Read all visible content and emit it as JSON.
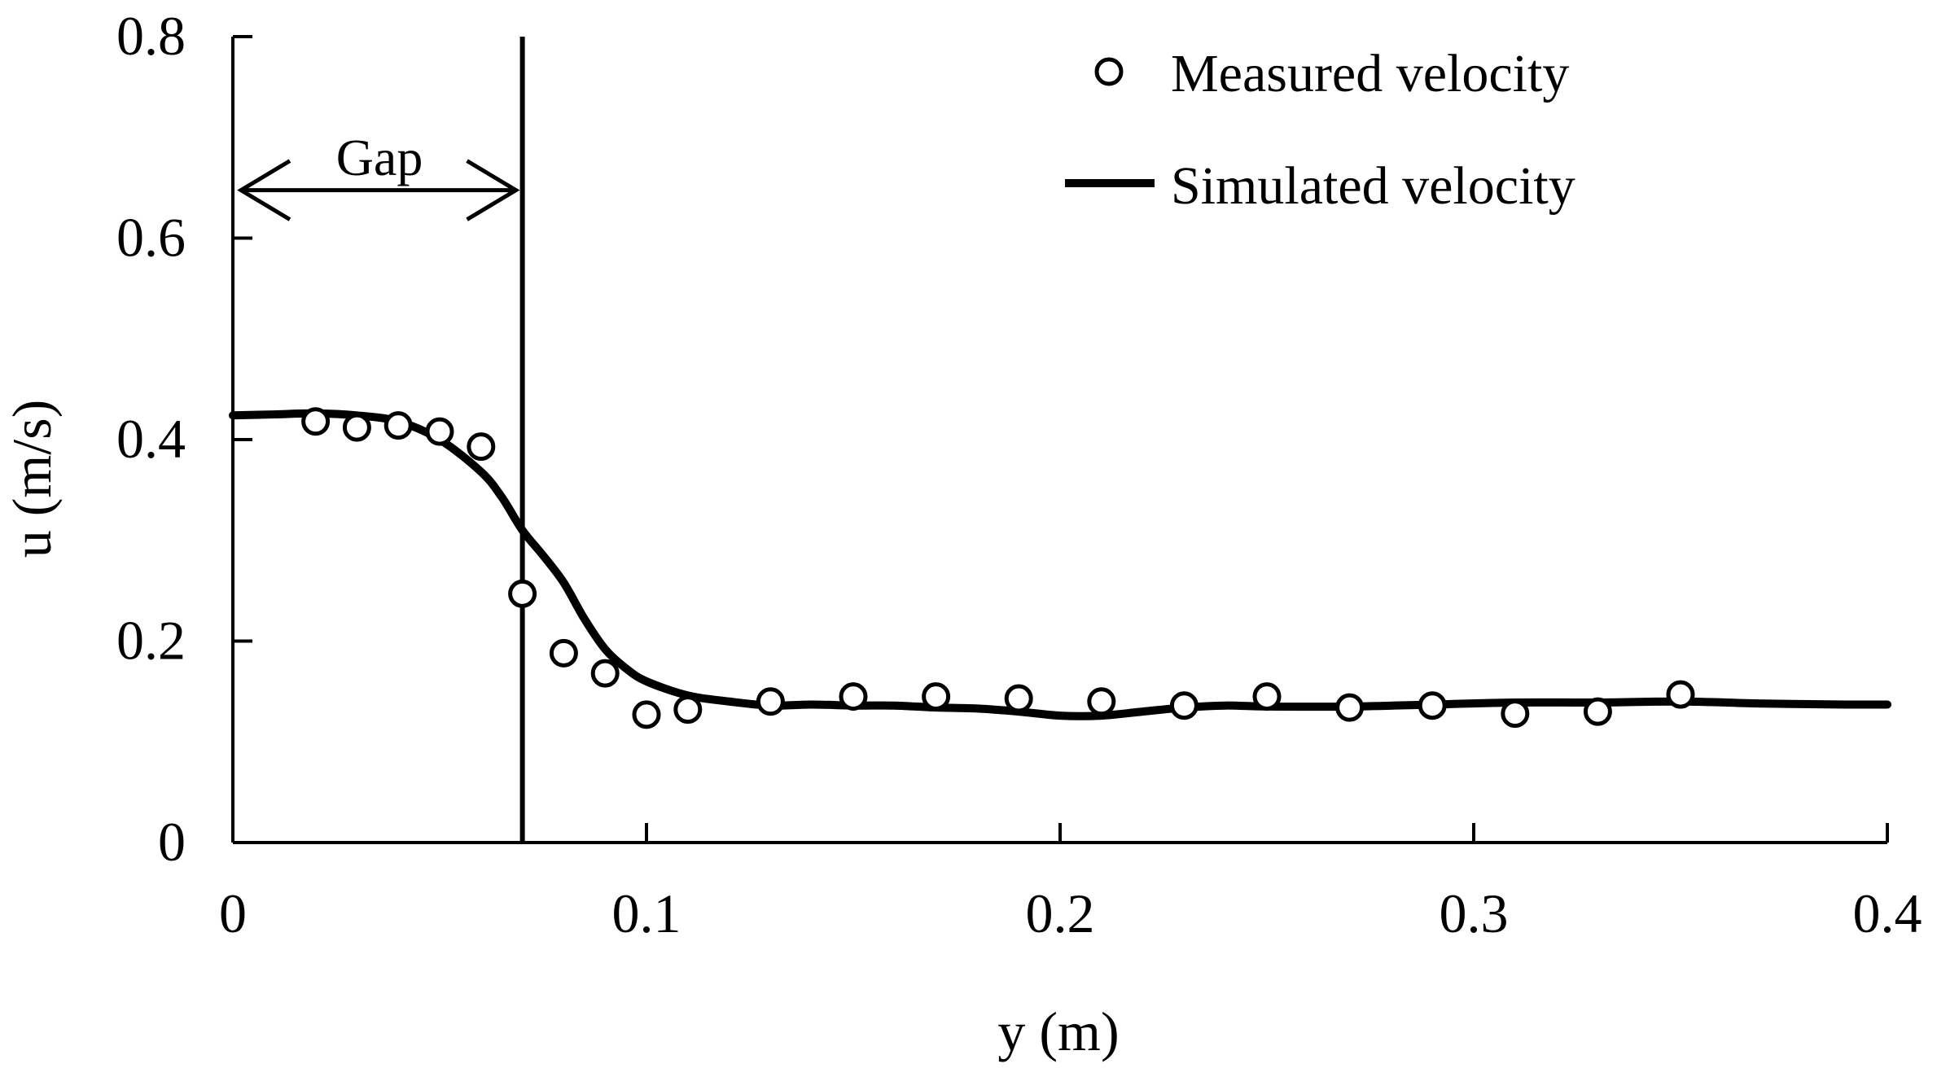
{
  "chart_data": {
    "type": "scatter",
    "title": "",
    "xlabel": "y (m)",
    "ylabel": "u (m/s)",
    "xlim": [
      0,
      0.4
    ],
    "ylim": [
      0,
      0.8
    ],
    "x_ticks": [
      0,
      0.1,
      0.2,
      0.3,
      0.4
    ],
    "x_tick_labels": [
      "0",
      "0.1",
      "0.2",
      "0.3",
      "0.4"
    ],
    "y_ticks": [
      0,
      0.2,
      0.4,
      0.6,
      0.8
    ],
    "y_tick_labels": [
      "0",
      "0.2",
      "0.4",
      "0.6",
      "0.8"
    ],
    "grid": false,
    "legend_position": "top-right",
    "series": [
      {
        "name": "Measured velocity",
        "kind": "scatter",
        "marker": "open-circle",
        "x": [
          0.02,
          0.03,
          0.04,
          0.05,
          0.06,
          0.07,
          0.08,
          0.09,
          0.1,
          0.11,
          0.13,
          0.15,
          0.17,
          0.19,
          0.21,
          0.23,
          0.25,
          0.27,
          0.29,
          0.31,
          0.33,
          0.35
        ],
        "y": [
          0.418,
          0.412,
          0.414,
          0.408,
          0.393,
          0.247,
          0.188,
          0.168,
          0.127,
          0.132,
          0.14,
          0.145,
          0.145,
          0.143,
          0.14,
          0.136,
          0.145,
          0.134,
          0.136,
          0.128,
          0.13,
          0.147
        ]
      },
      {
        "name": "Simulated velocity",
        "kind": "line",
        "x": [
          0,
          0.01,
          0.02,
          0.03,
          0.04,
          0.05,
          0.06,
          0.065,
          0.07,
          0.075,
          0.08,
          0.085,
          0.09,
          0.095,
          0.1,
          0.11,
          0.12,
          0.13,
          0.14,
          0.15,
          0.16,
          0.17,
          0.18,
          0.19,
          0.2,
          0.21,
          0.22,
          0.23,
          0.24,
          0.25,
          0.27,
          0.29,
          0.31,
          0.33,
          0.35,
          0.37,
          0.39,
          0.4
        ],
        "y": [
          0.424,
          0.425,
          0.426,
          0.424,
          0.418,
          0.4,
          0.368,
          0.343,
          0.31,
          0.285,
          0.258,
          0.222,
          0.192,
          0.173,
          0.16,
          0.146,
          0.14,
          0.136,
          0.137,
          0.136,
          0.136,
          0.134,
          0.133,
          0.13,
          0.126,
          0.126,
          0.13,
          0.134,
          0.136,
          0.135,
          0.135,
          0.137,
          0.139,
          0.139,
          0.14,
          0.138,
          0.137,
          0.137
        ]
      }
    ],
    "annotations": [
      {
        "type": "vertical-line",
        "x": 0.07,
        "label": ""
      },
      {
        "type": "double-arrow",
        "x_from": 0,
        "x_to": 0.07,
        "y": 0.65,
        "label": "Gap"
      }
    ],
    "colors": {
      "ink": "#000000",
      "background": "#ffffff"
    }
  }
}
